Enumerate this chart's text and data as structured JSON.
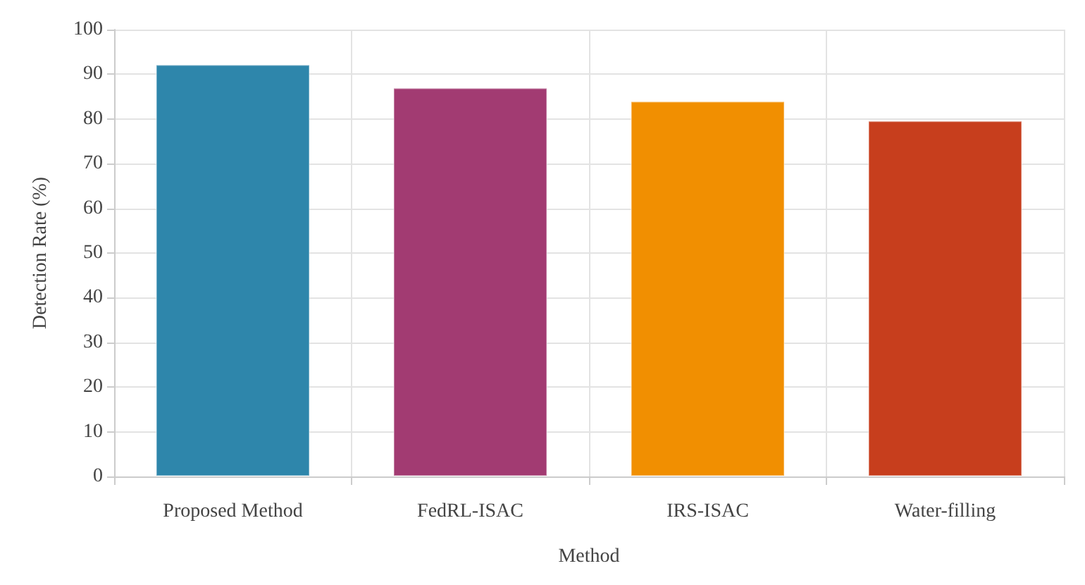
{
  "chart_data": {
    "type": "bar",
    "xlabel": "Method",
    "ylabel": "Detection Rate (%)",
    "categories": [
      "Proposed Method",
      "FedRL-ISAC",
      "IRS-ISAC",
      "Water-filling"
    ],
    "values": [
      92.2,
      87,
      84,
      79.6
    ],
    "colors": [
      "#2e86ab",
      "#a23b72",
      "#f18f01",
      "#c73e1d"
    ],
    "ylim": [
      0,
      100
    ],
    "yticks": [
      0,
      10,
      20,
      30,
      40,
      50,
      60,
      70,
      80,
      90,
      100
    ],
    "grid": true
  }
}
